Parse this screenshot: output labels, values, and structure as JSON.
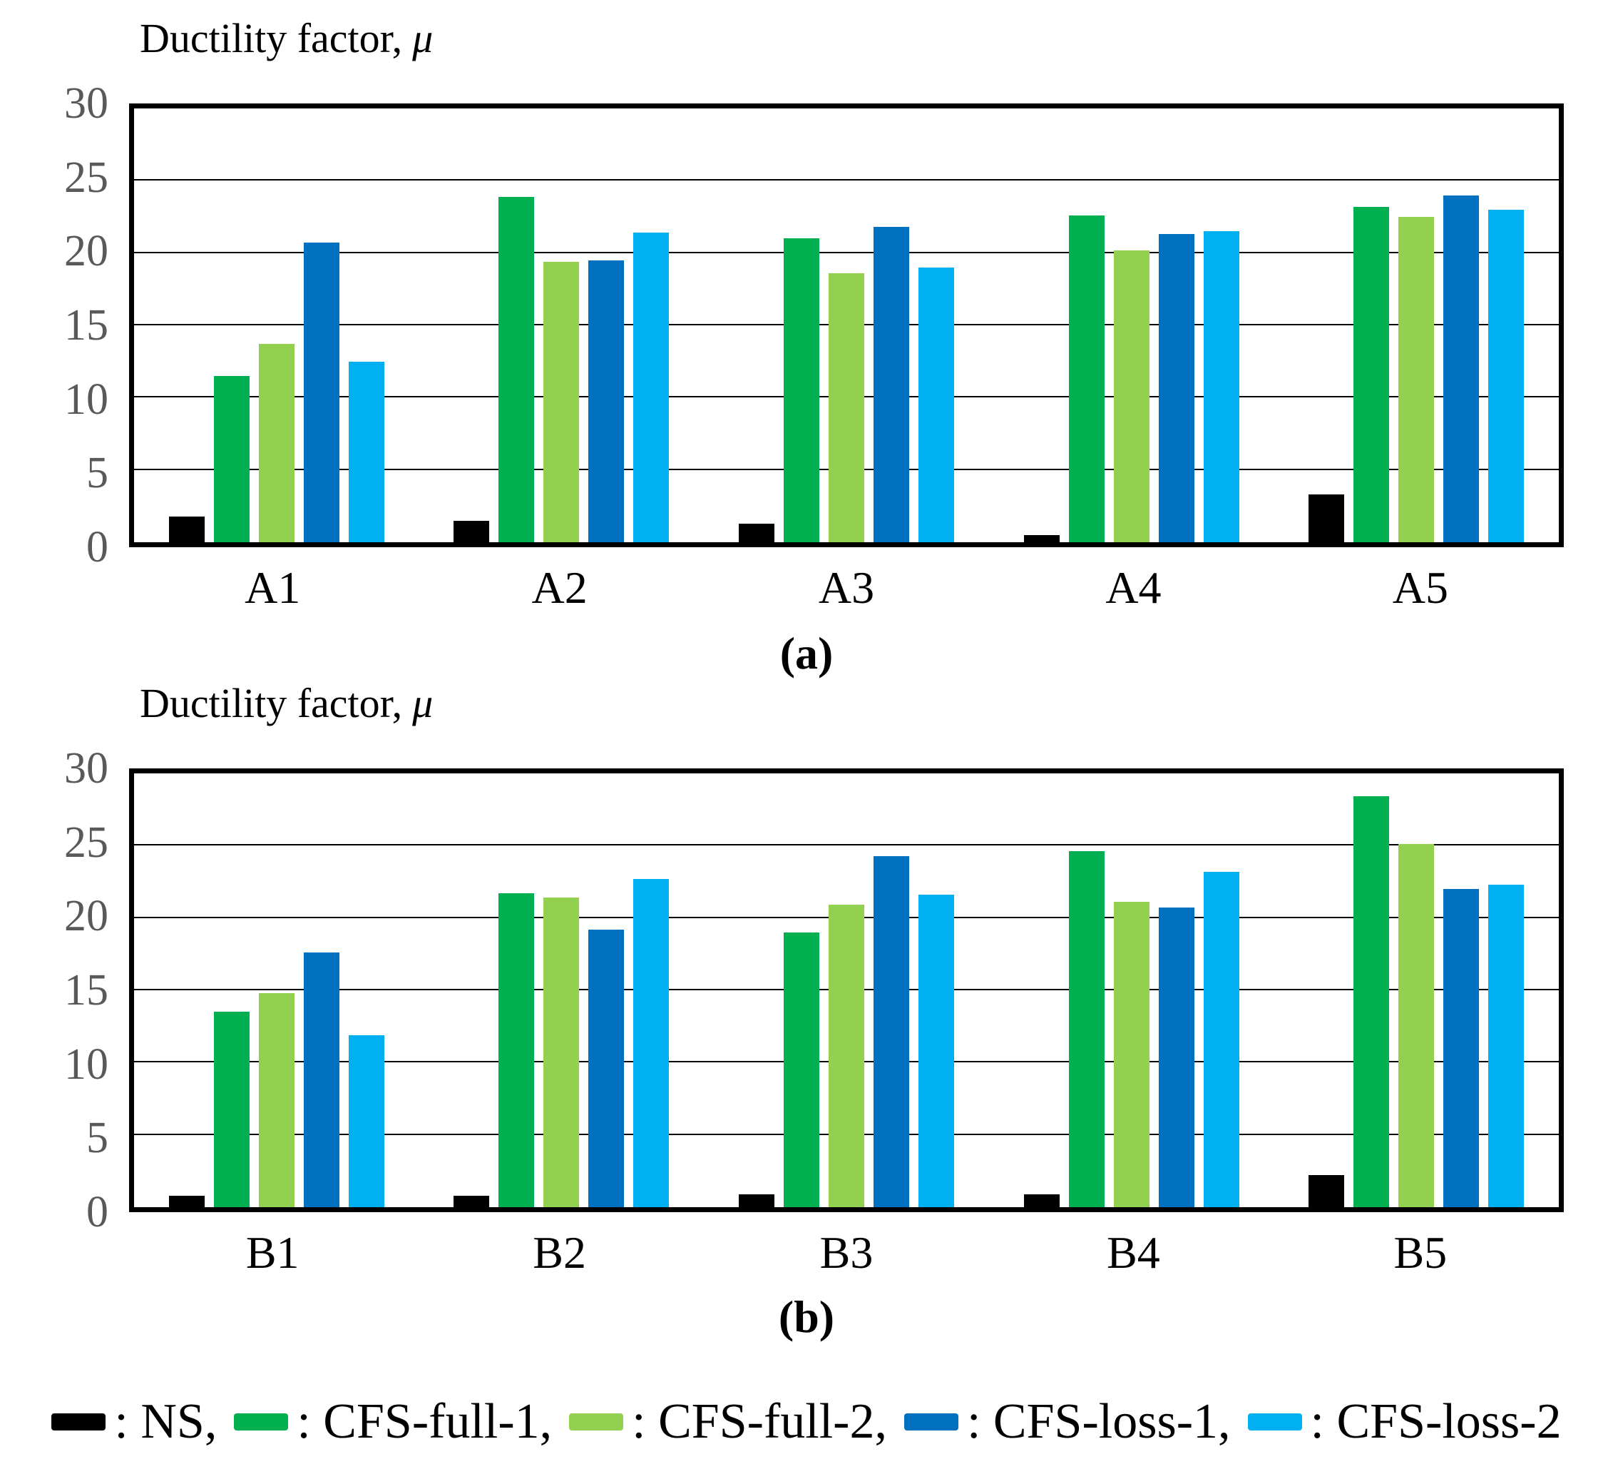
{
  "figure": {
    "legend_items": [
      {
        "label": "NS",
        "color": "#000000"
      },
      {
        "label": "CFS-full-1",
        "color": "#00B050"
      },
      {
        "label": "CFS-full-2",
        "color": "#92D050"
      },
      {
        "label": "CFS-loss-1",
        "color": "#0070C0"
      },
      {
        "label": "CFS-loss-2",
        "color": "#00B0F0"
      }
    ]
  },
  "chart_data": [
    {
      "type": "bar",
      "panel": "a",
      "title": "Ductility factor, μ",
      "title_prefix": "Ductility factor,",
      "title_symbol": "μ",
      "caption": "(a)",
      "categories": [
        "A1",
        "A2",
        "A3",
        "A4",
        "A5"
      ],
      "xlabel": "",
      "ylabel": "Ductility factor, μ",
      "ylim": [
        0,
        30
      ],
      "y_ticks": [
        0,
        5,
        10,
        15,
        20,
        25,
        30
      ],
      "grid": true,
      "legend_position": "shared-bottom",
      "series": [
        {
          "name": "NS",
          "color": "#000000",
          "values": [
            1.8,
            1.5,
            1.3,
            0.5,
            3.3
          ]
        },
        {
          "name": "CFS-full-1",
          "color": "#00B050",
          "values": [
            11.5,
            23.9,
            21.0,
            22.6,
            23.2
          ]
        },
        {
          "name": "CFS-full-2",
          "color": "#92D050",
          "values": [
            13.7,
            19.4,
            18.6,
            20.2,
            22.5
          ]
        },
        {
          "name": "CFS-loss-1",
          "color": "#0070C0",
          "values": [
            20.7,
            19.5,
            21.8,
            21.3,
            24.0
          ]
        },
        {
          "name": "CFS-loss-2",
          "color": "#00B0F0",
          "values": [
            12.5,
            21.4,
            19.0,
            21.5,
            23.0
          ]
        }
      ]
    },
    {
      "type": "bar",
      "panel": "b",
      "title": "Ductility factor, μ",
      "title_prefix": "Ductility factor,",
      "title_symbol": "μ",
      "caption": "(b)",
      "categories": [
        "B1",
        "B2",
        "B3",
        "B4",
        "B5"
      ],
      "xlabel": "",
      "ylabel": "Ductility factor, μ",
      "ylim": [
        0,
        30
      ],
      "y_ticks": [
        0,
        5,
        10,
        15,
        20,
        25,
        30
      ],
      "grid": true,
      "legend_position": "shared-bottom",
      "series": [
        {
          "name": "NS",
          "color": "#000000",
          "values": [
            0.8,
            0.8,
            0.9,
            0.9,
            2.2
          ]
        },
        {
          "name": "CFS-full-1",
          "color": "#00B050",
          "values": [
            13.5,
            21.7,
            19.0,
            24.6,
            28.4
          ]
        },
        {
          "name": "CFS-full-2",
          "color": "#92D050",
          "values": [
            14.8,
            21.4,
            20.9,
            21.1,
            25.1
          ]
        },
        {
          "name": "CFS-loss-1",
          "color": "#0070C0",
          "values": [
            17.6,
            19.2,
            24.3,
            20.7,
            22.0
          ]
        },
        {
          "name": "CFS-loss-2",
          "color": "#00B0F0",
          "values": [
            11.9,
            22.7,
            21.6,
            23.2,
            22.3
          ]
        }
      ]
    }
  ]
}
